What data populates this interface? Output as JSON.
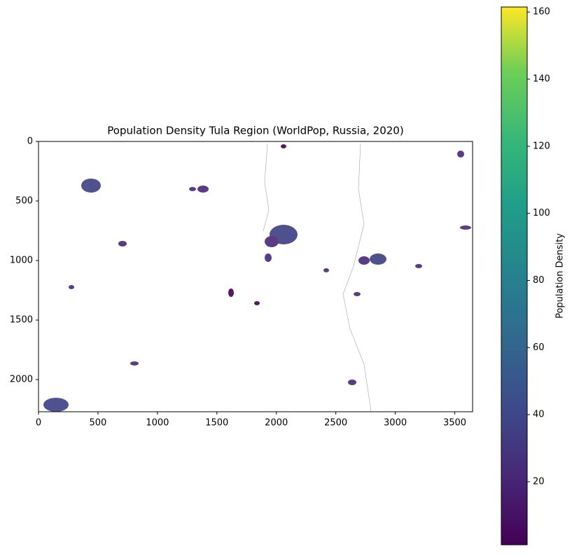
{
  "chart_data": {
    "type": "image",
    "title": "Population Density Tula Region (WorldPop, Russia, 2020)",
    "xlim": [
      0,
      3650
    ],
    "xticks": [
      0,
      500,
      1000,
      1500,
      2000,
      2500,
      3000,
      3500
    ],
    "ylim": [
      2270,
      0
    ],
    "yticks": [
      0,
      500,
      1000,
      1500,
      2000
    ],
    "colorbar": {
      "label": "Population Density",
      "clim": [
        1.2,
        161.5
      ],
      "ticks": [
        20,
        40,
        60,
        80,
        100,
        120,
        140,
        160
      ],
      "cmap": "viridis"
    }
  }
}
